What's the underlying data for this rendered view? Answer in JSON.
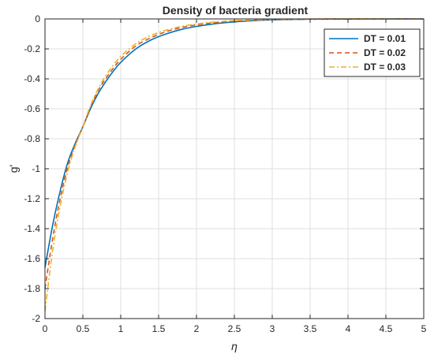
{
  "chart_data": {
    "type": "line",
    "title": "Density of bacteria gradient",
    "xlabel": "η",
    "ylabel": "g'",
    "xlim": [
      0,
      5
    ],
    "ylim": [
      -2,
      0
    ],
    "x_ticks": [
      0,
      0.5,
      1,
      1.5,
      2,
      2.5,
      3,
      3.5,
      4,
      4.5,
      5
    ],
    "x_tick_labels": [
      "0",
      "0.5",
      "1",
      "1.5",
      "2",
      "2.5",
      "3",
      "3.5",
      "4",
      "4.5",
      "5"
    ],
    "y_ticks": [
      0,
      -0.2,
      -0.4,
      -0.6,
      -0.8,
      -1,
      -1.2,
      -1.4,
      -1.6,
      -1.8,
      -2
    ],
    "y_tick_labels": [
      "0",
      "-0.2",
      "-0.4",
      "-0.6",
      "-0.8",
      "-1",
      "-1.2",
      "-1.4",
      "-1.6",
      "-1.8",
      "-2"
    ],
    "grid": true,
    "legend_position": "top-right",
    "series": [
      {
        "name": "DT = 0.01",
        "color": "#0072BD",
        "style": "solid",
        "x": [
          0,
          0.1,
          0.2,
          0.3,
          0.4,
          0.5,
          0.6,
          0.7,
          0.8,
          0.9,
          1.0,
          1.2,
          1.4,
          1.6,
          1.8,
          2.0,
          2.2,
          2.4,
          2.6,
          2.8,
          3.0,
          3.5,
          4.0,
          4.5,
          5.0
        ],
        "y": [
          -1.66,
          -1.38,
          -1.15,
          -0.96,
          -0.83,
          -0.72,
          -0.6,
          -0.5,
          -0.42,
          -0.35,
          -0.29,
          -0.2,
          -0.14,
          -0.1,
          -0.07,
          -0.05,
          -0.035,
          -0.024,
          -0.016,
          -0.01,
          -0.006,
          -0.002,
          -0.001,
          0,
          0
        ]
      },
      {
        "name": "DT = 0.02",
        "color": "#D95319",
        "style": "dashed",
        "x": [
          0,
          0.1,
          0.2,
          0.3,
          0.4,
          0.5,
          0.6,
          0.7,
          0.8,
          0.9,
          1.0,
          1.2,
          1.4,
          1.6,
          1.8,
          2.0,
          2.2,
          2.4,
          2.6,
          2.8,
          3.0,
          3.5,
          4.0,
          4.5,
          5.0
        ],
        "y": [
          -1.8,
          -1.47,
          -1.2,
          -0.99,
          -0.84,
          -0.72,
          -0.59,
          -0.48,
          -0.4,
          -0.33,
          -0.27,
          -0.18,
          -0.125,
          -0.085,
          -0.058,
          -0.04,
          -0.027,
          -0.018,
          -0.012,
          -0.007,
          -0.004,
          -0.001,
          0,
          0,
          0
        ]
      },
      {
        "name": "DT = 0.03",
        "color": "#EDB120",
        "style": "dashdot",
        "x": [
          0,
          0.1,
          0.2,
          0.3,
          0.4,
          0.5,
          0.6,
          0.7,
          0.8,
          0.9,
          1.0,
          1.2,
          1.4,
          1.6,
          1.8,
          2.0,
          2.2,
          2.4,
          2.6,
          2.8,
          3.0,
          3.5,
          4.0,
          4.5,
          5.0
        ],
        "y": [
          -1.95,
          -1.55,
          -1.25,
          -1.02,
          -0.85,
          -0.72,
          -0.58,
          -0.47,
          -0.38,
          -0.31,
          -0.25,
          -0.165,
          -0.11,
          -0.075,
          -0.05,
          -0.034,
          -0.022,
          -0.014,
          -0.009,
          -0.005,
          -0.003,
          -0.001,
          0,
          0,
          0
        ]
      }
    ]
  }
}
